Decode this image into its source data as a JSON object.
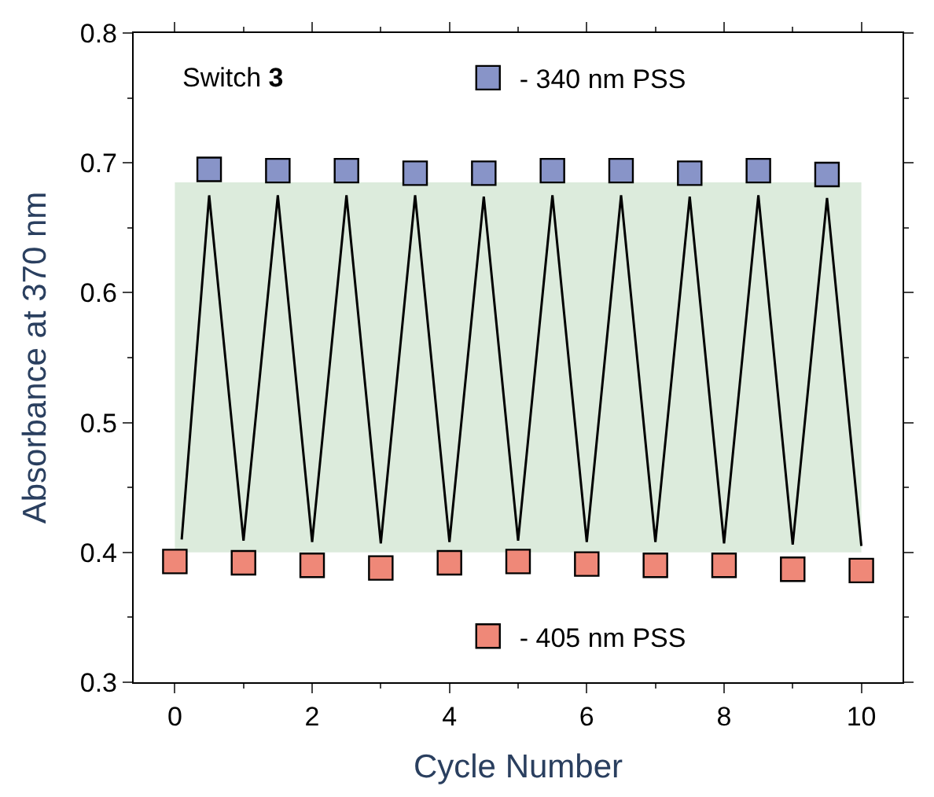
{
  "chart_data": {
    "type": "scatter",
    "xlabel": "Cycle Number",
    "ylabel": "Absorbance at 370 nm",
    "annotations": [
      "Switch 3"
    ],
    "xlim": [
      -0.6,
      10.6
    ],
    "xticks": [
      0,
      2,
      4,
      6,
      8,
      10
    ],
    "ylim": [
      0.3,
      0.8
    ],
    "yticks": [
      0.3,
      0.4,
      0.5,
      0.6,
      0.7,
      0.8
    ],
    "marker": "square",
    "grid": false,
    "legend": "right",
    "bands": [
      {
        "axis": "y",
        "from": 0.4,
        "to": 0.685,
        "color": "#dcebdc"
      }
    ],
    "series": [
      {
        "name": "- 340 nm PSS",
        "color": "#8894c8",
        "x": [
          0.5,
          1.5,
          2.5,
          3.5,
          4.5,
          5.5,
          6.5,
          7.5,
          8.5,
          9.5
        ],
        "values": [
          0.695,
          0.694,
          0.694,
          0.692,
          0.692,
          0.694,
          0.694,
          0.692,
          0.694,
          0.691
        ]
      },
      {
        "name": "- 405 nm PSS",
        "color": "#ef8878",
        "x": [
          0,
          1,
          2,
          3,
          4,
          5,
          6,
          7,
          8,
          9,
          10
        ],
        "values": [
          0.393,
          0.392,
          0.39,
          0.388,
          0.392,
          0.393,
          0.391,
          0.39,
          0.39,
          0.387,
          0.386
        ]
      },
      {
        "type": "line",
        "color": "#000000",
        "marker": "none",
        "x": [
          0.1,
          0.5,
          1,
          1.5,
          2,
          2.5,
          3,
          3.5,
          4,
          4.5,
          5,
          5.5,
          6,
          6.5,
          7,
          7.5,
          8,
          8.5,
          9,
          9.5,
          10
        ],
        "values": [
          0.41,
          0.675,
          0.409,
          0.675,
          0.408,
          0.675,
          0.407,
          0.675,
          0.408,
          0.674,
          0.409,
          0.675,
          0.408,
          0.675,
          0.408,
          0.674,
          0.407,
          0.675,
          0.406,
          0.673,
          0.405
        ]
      }
    ]
  }
}
